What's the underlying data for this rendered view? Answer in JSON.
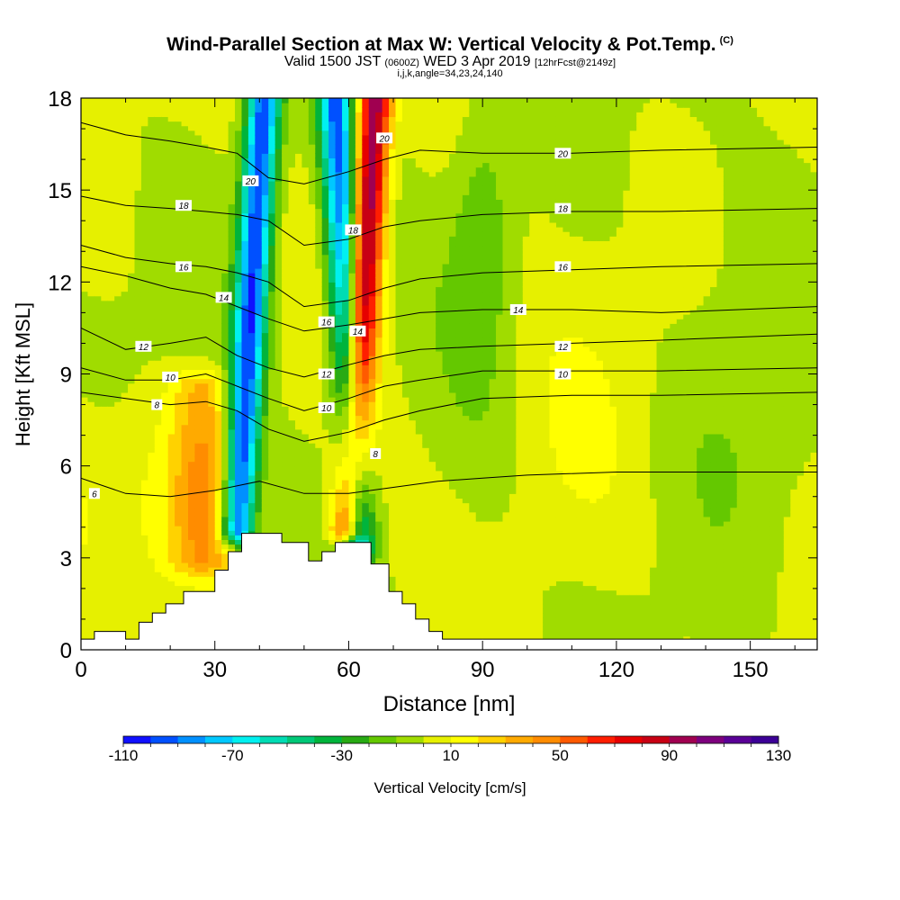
{
  "title": {
    "main": "Wind-Parallel Section at Max W: Vertical Velocity & Pot.Temp.",
    "mark": "(C)",
    "valid_a": "Valid 1500 JST",
    "valid_utc": "(0600Z)",
    "valid_b": "WED 3 Apr 2019",
    "fcst": "[12hrFcst@2149z]",
    "indices": "i,j,k,angle=34,23,24,140"
  },
  "chart_data": {
    "type": "heatmap",
    "xlabel": "Distance [nm]",
    "ylabel": "Height [Kft MSL]",
    "xlim": [
      0,
      165
    ],
    "ylim": [
      0,
      18
    ],
    "x_ticks": [
      0,
      30,
      60,
      90,
      120,
      150
    ],
    "y_ticks": [
      0,
      3,
      6,
      9,
      12,
      15,
      18
    ],
    "colorbar": {
      "label": "Vertical Velocity [cm/s]",
      "min": -110,
      "max": 130,
      "step": 10,
      "tick_labels": [
        "-110",
        "-70",
        "-30",
        "10",
        "50",
        "90",
        "130"
      ],
      "colors": [
        "#1010ff",
        "#0050ff",
        "#0090ff",
        "#00c8ff",
        "#00f0f0",
        "#00dcb4",
        "#00c878",
        "#00b43c",
        "#28aa14",
        "#64c800",
        "#a0dc00",
        "#e6f000",
        "#ffff00",
        "#ffd200",
        "#ffaa00",
        "#ff8c00",
        "#ff5a00",
        "#ff1e00",
        "#e60000",
        "#c80014",
        "#a00050",
        "#7d007d",
        "#5a0096",
        "#3c0096"
      ]
    },
    "velocity_features": [
      {
        "type": "downdraft",
        "value": -100,
        "x": [
          41,
          35
        ],
        "height": [
          18,
          4
        ]
      },
      {
        "type": "downdraft",
        "value": -90,
        "x": [
          57,
          62
        ],
        "height": [
          18,
          3.5
        ]
      },
      {
        "type": "updraft",
        "value": 100,
        "x": [
          66,
          60
        ],
        "height": [
          18,
          4
        ]
      },
      {
        "type": "updraft",
        "value": 30,
        "x": [
          27,
          27
        ],
        "height": [
          8.5,
          3
        ]
      }
    ],
    "terrain_profile": {
      "x": [
        0,
        3,
        3,
        10,
        10,
        13,
        13,
        16,
        16,
        19,
        19,
        23,
        23,
        30,
        30,
        33,
        33,
        36,
        36,
        45,
        45,
        51,
        51,
        54,
        54,
        57,
        57,
        65,
        65,
        69,
        69,
        72,
        72,
        75,
        75,
        78,
        78,
        81,
        81,
        165
      ],
      "height": [
        0.35,
        0.35,
        0.6,
        0.6,
        0.35,
        0.35,
        0.9,
        0.9,
        1.2,
        1.2,
        1.5,
        1.5,
        1.9,
        1.9,
        2.6,
        2.6,
        3.2,
        3.2,
        3.8,
        3.8,
        3.5,
        3.5,
        2.9,
        2.9,
        3.2,
        3.2,
        3.5,
        3.5,
        2.8,
        2.8,
        1.9,
        1.9,
        1.5,
        1.5,
        1.0,
        1.0,
        0.6,
        0.6,
        0.35,
        0.35
      ]
    },
    "isentropes": [
      {
        "value": 6,
        "x": [
          0,
          10,
          20,
          30,
          40,
          50,
          60,
          70,
          80,
          90,
          100,
          120,
          140,
          165
        ],
        "height": [
          5.6,
          5.1,
          5.0,
          5.2,
          5.5,
          5.1,
          5.1,
          5.3,
          5.5,
          5.6,
          5.7,
          5.8,
          5.8,
          5.8
        ]
      },
      {
        "value": 8,
        "x": [
          0,
          10,
          20,
          28,
          35,
          42,
          50,
          60,
          68,
          76,
          90,
          110,
          130,
          165
        ],
        "height": [
          8.4,
          8.2,
          8.0,
          8.1,
          7.8,
          7.2,
          6.8,
          7.1,
          7.5,
          7.8,
          8.2,
          8.3,
          8.3,
          8.4
        ]
      },
      {
        "value": 10,
        "x": [
          0,
          10,
          20,
          28,
          35,
          42,
          50,
          60,
          68,
          76,
          90,
          110,
          130,
          165
        ],
        "height": [
          9.2,
          8.8,
          8.8,
          9.0,
          8.6,
          8.2,
          7.8,
          8.2,
          8.6,
          8.8,
          9.1,
          9.1,
          9.1,
          9.2
        ]
      },
      {
        "value": 12,
        "x": [
          0,
          10,
          20,
          28,
          35,
          42,
          50,
          60,
          68,
          76,
          90,
          110,
          130,
          165
        ],
        "height": [
          10.5,
          9.8,
          10.0,
          10.2,
          9.6,
          9.2,
          8.9,
          9.3,
          9.6,
          9.8,
          9.9,
          10.0,
          10.1,
          10.3
        ]
      },
      {
        "value": 14,
        "x": [
          0,
          10,
          20,
          28,
          35,
          42,
          50,
          60,
          68,
          76,
          90,
          110,
          130,
          165
        ],
        "height": [
          12.5,
          12.2,
          11.8,
          11.6,
          11.2,
          10.8,
          10.4,
          10.6,
          10.8,
          11.0,
          11.1,
          11.1,
          11.0,
          11.2
        ]
      },
      {
        "value": 16,
        "x": [
          0,
          10,
          20,
          28,
          35,
          42,
          50,
          60,
          68,
          76,
          90,
          110,
          130,
          165
        ],
        "height": [
          13.2,
          12.8,
          12.6,
          12.5,
          12.3,
          12.0,
          11.2,
          11.4,
          11.8,
          12.1,
          12.3,
          12.4,
          12.5,
          12.6
        ]
      },
      {
        "value": 18,
        "x": [
          0,
          10,
          20,
          28,
          35,
          42,
          50,
          60,
          68,
          76,
          90,
          110,
          130,
          165
        ],
        "height": [
          14.8,
          14.5,
          14.4,
          14.3,
          14.2,
          14.0,
          13.2,
          13.4,
          13.8,
          14.0,
          14.2,
          14.3,
          14.3,
          14.4
        ]
      },
      {
        "value": 20,
        "x": [
          0,
          10,
          20,
          28,
          35,
          42,
          50,
          60,
          68,
          76,
          90,
          110,
          130,
          165
        ],
        "height": [
          17.2,
          16.8,
          16.6,
          16.4,
          16.2,
          15.4,
          15.2,
          15.6,
          16.0,
          16.3,
          16.2,
          16.2,
          16.3,
          16.4
        ]
      }
    ],
    "isentrope_labels": [
      {
        "text": "6",
        "x": 3,
        "height": 5.1
      },
      {
        "text": "8",
        "x": 17,
        "height": 8.0
      },
      {
        "text": "8",
        "x": 66,
        "height": 6.4
      },
      {
        "text": "10",
        "x": 20,
        "height": 8.9
      },
      {
        "text": "10",
        "x": 55,
        "height": 7.9
      },
      {
        "text": "10",
        "x": 108,
        "height": 9.0
      },
      {
        "text": "12",
        "x": 14,
        "height": 9.9
      },
      {
        "text": "12",
        "x": 55,
        "height": 9.0
      },
      {
        "text": "12",
        "x": 108,
        "height": 9.9
      },
      {
        "text": "14",
        "x": 32,
        "height": 11.5
      },
      {
        "text": "14",
        "x": 62,
        "height": 10.4
      },
      {
        "text": "14",
        "x": 98,
        "height": 11.1
      },
      {
        "text": "16",
        "x": 23,
        "height": 12.5
      },
      {
        "text": "16",
        "x": 55,
        "height": 10.7
      },
      {
        "text": "16",
        "x": 108,
        "height": 12.5
      },
      {
        "text": "18",
        "x": 23,
        "height": 14.5
      },
      {
        "text": "18",
        "x": 61,
        "height": 13.7
      },
      {
        "text": "18",
        "x": 108,
        "height": 14.4
      },
      {
        "text": "20",
        "x": 38,
        "height": 15.3
      },
      {
        "text": "20",
        "x": 68,
        "height": 16.7
      },
      {
        "text": "20",
        "x": 108,
        "height": 16.2
      }
    ]
  }
}
